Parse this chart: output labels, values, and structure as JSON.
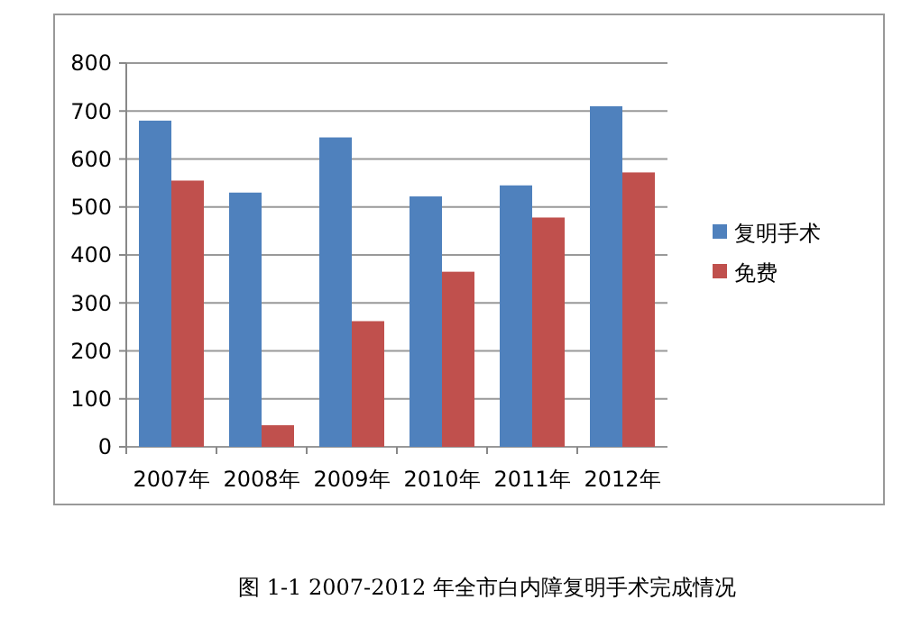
{
  "chart_data": {
    "type": "bar",
    "title": "图 1-1   2007-2012 年全市白内障复明手术完成情况",
    "categories": [
      "2007年",
      "2008年",
      "2009年",
      "2010年",
      "2011年",
      "2012年"
    ],
    "series": [
      {
        "name": "复明手术",
        "color": "#4f81bd",
        "values": [
          680,
          530,
          645,
          522,
          545,
          710
        ]
      },
      {
        "name": "免费",
        "color": "#c0504d",
        "values": [
          555,
          45,
          262,
          365,
          478,
          572
        ]
      }
    ],
    "ylim": [
      0,
      800
    ],
    "yticks": [
      0,
      100,
      200,
      300,
      400,
      500,
      600,
      700,
      800
    ],
    "grid": "y",
    "legend": "right"
  }
}
